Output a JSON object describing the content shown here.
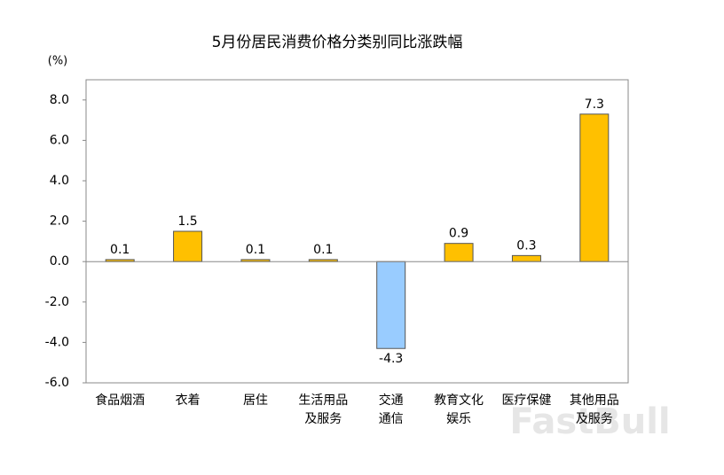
{
  "chart_data": {
    "type": "bar",
    "title": "5月份居民消费价格分类别同比涨跌幅",
    "y_label": "(%)",
    "categories": [
      [
        "食品烟酒"
      ],
      [
        "衣着"
      ],
      [
        "居住"
      ],
      [
        "生活用品",
        "及服务"
      ],
      [
        "交通",
        "通信"
      ],
      [
        "教育文化",
        "娱乐"
      ],
      [
        "医疗保健"
      ],
      [
        "其他用品",
        "及服务"
      ]
    ],
    "values": [
      0.1,
      1.5,
      0.1,
      0.1,
      -4.3,
      0.9,
      0.3,
      7.3
    ],
    "color": "#FFC000",
    "negative_color": "#99CCFF",
    "data_labels": true,
    "ylim": [
      -6,
      9
    ],
    "yticks": [
      {
        "value": -6,
        "label": "-6.0"
      },
      {
        "value": -4,
        "label": "-4.0"
      },
      {
        "value": -2,
        "label": "-2.0"
      },
      {
        "value": 0,
        "label": "0.0"
      },
      {
        "value": 2,
        "label": "2.0"
      },
      {
        "value": 4,
        "label": "4.0"
      },
      {
        "value": 6,
        "label": "6.0"
      },
      {
        "value": 8,
        "label": "8.0"
      }
    ],
    "grid": false,
    "watermark": "FastBull"
  }
}
